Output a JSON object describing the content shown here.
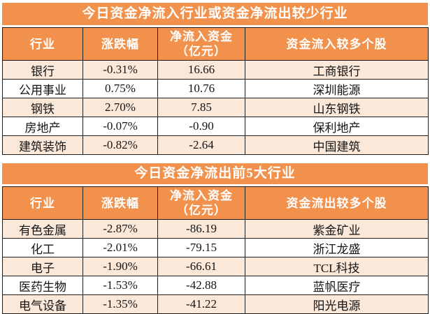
{
  "colors": {
    "accent_orange": "#F2914C",
    "row_alt_peach": "#FBE8D9",
    "row_alt_white": "#FFFFFF",
    "border": "#1C1C1C",
    "header_text": "#FFFFFF",
    "body_text": "#141414"
  },
  "chart_data": [
    {
      "type": "table",
      "title": "今日资金净流入行业或资金净流出较少行业",
      "columns": [
        "行业",
        "涨跌幅",
        "净流入资金\n（亿元）",
        "资金流入较多个股"
      ],
      "rows": [
        [
          "银行",
          "-0.31%",
          "16.66",
          "工商银行"
        ],
        [
          "公用事业",
          "0.75%",
          "10.76",
          "深圳能源"
        ],
        [
          "钢铁",
          "2.70%",
          "7.85",
          "山东钢铁"
        ],
        [
          "房地产",
          "-0.07%",
          "-0.90",
          "保利地产"
        ],
        [
          "建筑装饰",
          "-0.82%",
          "-2.64",
          "中国建筑"
        ]
      ]
    },
    {
      "type": "table",
      "title": "今日资金净流出前5大行业",
      "columns": [
        "行业",
        "涨跌幅",
        "净流入资金\n（亿元）",
        "资金流出较多个股"
      ],
      "rows": [
        [
          "有色金属",
          "-2.87%",
          "-86.19",
          "紫金矿业"
        ],
        [
          "化工",
          "-2.01%",
          "-79.15",
          "浙江龙盛"
        ],
        [
          "电子",
          "-1.90%",
          "-66.61",
          "TCL科技"
        ],
        [
          "医药生物",
          "-1.53%",
          "-42.88",
          "蓝帆医疗"
        ],
        [
          "电气设备",
          "-1.35%",
          "-41.22",
          "阳光电源"
        ]
      ]
    }
  ]
}
